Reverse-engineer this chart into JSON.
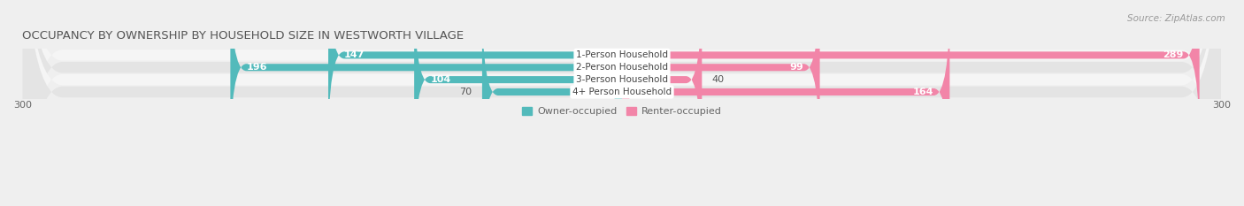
{
  "title": "OCCUPANCY BY OWNERSHIP BY HOUSEHOLD SIZE IN WESTWORTH VILLAGE",
  "source": "Source: ZipAtlas.com",
  "categories": [
    "1-Person Household",
    "2-Person Household",
    "3-Person Household",
    "4+ Person Household"
  ],
  "owner_values": [
    147,
    196,
    104,
    70
  ],
  "renter_values": [
    289,
    99,
    40,
    164
  ],
  "owner_color": "#52babb",
  "renter_color": "#f285a8",
  "axis_max": 300,
  "axis_min": -300,
  "bar_height": 0.58,
  "bg_color": "#efefef",
  "row_bg_light": "#f5f5f5",
  "row_bg_dark": "#e4e4e4",
  "title_fontsize": 9.5,
  "source_fontsize": 7.5,
  "tick_fontsize": 8,
  "bar_label_fontsize": 8,
  "cat_label_fontsize": 7.5,
  "legend_fontsize": 8
}
